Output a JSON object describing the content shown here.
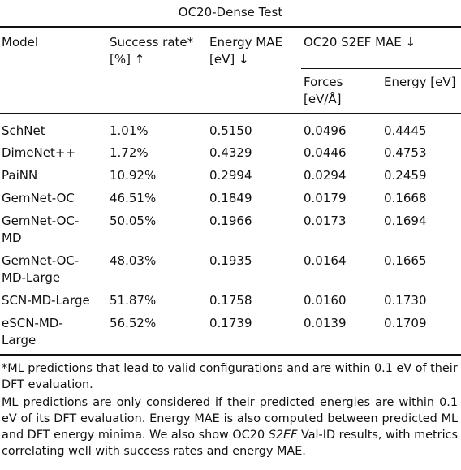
{
  "caption": "OC20-Dense Test",
  "headers": {
    "model": "Model",
    "success_line1": "Success rate*",
    "success_line2": "[%] ↑",
    "energy_mae_line1": "Energy MAE",
    "energy_mae_line2": "[eV] ↓",
    "s2ef_group": "OC20 S2EF MAE ↓",
    "forces_line1": "Forces",
    "forces_line2": "[eV/Å]",
    "s2ef_energy": "Energy [eV]"
  },
  "rows": [
    {
      "model": [
        "SchNet"
      ],
      "success": "1.01%",
      "energy_mae": "0.5150",
      "forces": "0.0496",
      "s2ef_energy": "0.4445"
    },
    {
      "model": [
        "DimeNet++"
      ],
      "success": "1.72%",
      "energy_mae": "0.4329",
      "forces": "0.0446",
      "s2ef_energy": "0.4753"
    },
    {
      "model": [
        "PaiNN"
      ],
      "success": "10.92%",
      "energy_mae": "0.2994",
      "forces": "0.0294",
      "s2ef_energy": "0.2459"
    },
    {
      "model": [
        "GemNet-OC"
      ],
      "success": "46.51%",
      "energy_mae": "0.1849",
      "forces": "0.0179",
      "s2ef_energy": "0.1668"
    },
    {
      "model": [
        "GemNet-OC-",
        "MD"
      ],
      "success": "50.05%",
      "energy_mae": "0.1966",
      "forces": "0.0173",
      "s2ef_energy": "0.1694"
    },
    {
      "model": [
        "GemNet-OC-",
        "MD-Large"
      ],
      "success": "48.03%",
      "energy_mae": "0.1935",
      "forces": "0.0164",
      "s2ef_energy": "0.1665"
    },
    {
      "model": [
        "SCN-MD-Large"
      ],
      "success": "51.87%",
      "energy_mae": "0.1758",
      "forces": "0.0160",
      "s2ef_energy": "0.1730"
    },
    {
      "model": [
        "eSCN-MD-",
        "Large"
      ],
      "success": "56.52%",
      "energy_mae": "0.1739",
      "forces": "0.0139",
      "s2ef_energy": "0.1709"
    }
  ],
  "footnotes": {
    "asterisk": "*ML predictions that lead to valid configurations and are within 0.1 eV of their DFT evaluation.",
    "note_part1": "ML predictions are only considered if their predicted energies are within 0.1 eV of its DFT evaluation. Energy MAE is also computed between predicted ML and DFT energy minima. We also show OC20 ",
    "note_italic": "S2EF",
    "note_part2": " Val-ID results, with metrics correlating well with success rates and energy MAE."
  }
}
